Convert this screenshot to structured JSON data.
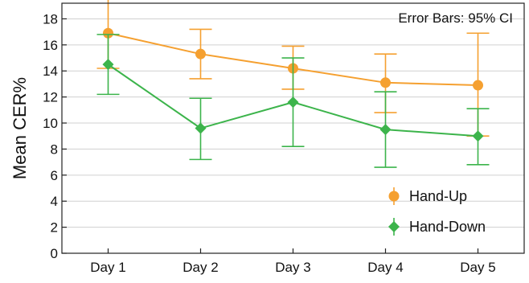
{
  "chart_data": {
    "type": "line",
    "categories": [
      "Day 1",
      "Day 2",
      "Day 3",
      "Day 4",
      "Day 5"
    ],
    "ylabel": "Mean CER%",
    "xlabel": "",
    "ylim": [
      0,
      19.2
    ],
    "yticks": [
      0,
      2,
      4,
      6,
      8,
      10,
      12,
      14,
      16,
      18
    ],
    "grid": "horizontal",
    "annotation": "Error Bars: 95% CI",
    "legend_position": "bottom-right",
    "series": [
      {
        "name": "Hand-Up",
        "color": "#f5a030",
        "marker": "circle",
        "values": [
          16.9,
          15.3,
          14.2,
          13.1,
          12.9
        ],
        "ci_low": [
          14.2,
          13.4,
          12.6,
          10.8,
          9.0
        ],
        "ci_high": [
          19.7,
          17.2,
          15.9,
          15.3,
          16.9
        ]
      },
      {
        "name": "Hand-Down",
        "color": "#3cb44b",
        "marker": "diamond",
        "values": [
          14.5,
          9.6,
          11.6,
          9.5,
          9.0
        ],
        "ci_low": [
          12.2,
          7.2,
          8.2,
          6.6,
          6.8
        ],
        "ci_high": [
          16.8,
          11.9,
          15.0,
          12.4,
          11.1
        ]
      }
    ]
  }
}
